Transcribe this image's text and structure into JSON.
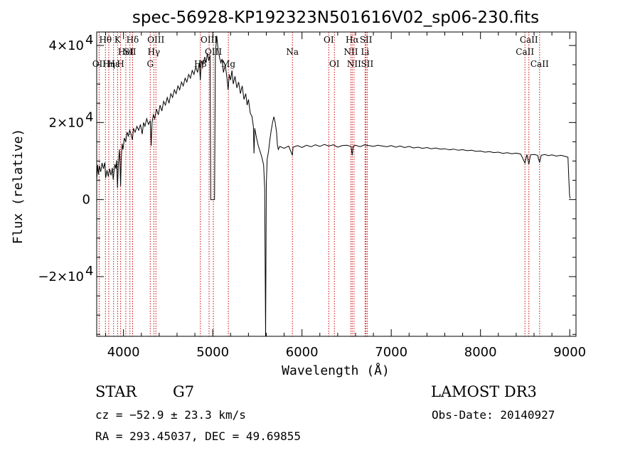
{
  "chart_data": {
    "type": "line",
    "title": "spec-56928-KP192323N501616V02_sp06-230.fits",
    "xlabel": "Wavelength (Å)",
    "ylabel": "Flux (relative)",
    "xlim": [
      3700,
      9070
    ],
    "ylim": [
      -35500,
      43500
    ],
    "x_ticks": [
      {
        "value": 4000,
        "label": "4000"
      },
      {
        "value": 5000,
        "label": "5000"
      },
      {
        "value": 6000,
        "label": "6000"
      },
      {
        "value": 7000,
        "label": "7000"
      },
      {
        "value": 8000,
        "label": "8000"
      },
      {
        "value": 9000,
        "label": "9000"
      }
    ],
    "y_ticks": [
      {
        "value": 40000,
        "mant": "4×10",
        "exp": "4"
      },
      {
        "value": 20000,
        "mant": "2×10",
        "exp": "4"
      },
      {
        "value": 0,
        "mant": "0",
        "exp": ""
      },
      {
        "value": -20000,
        "mant": "−2×10",
        "exp": "4"
      }
    ],
    "x_minor_step": 200,
    "y_minor_step": 5000,
    "series": [
      {
        "name": "flux",
        "points": [
          [
            3700,
            5000
          ],
          [
            3710,
            9000
          ],
          [
            3720,
            6500
          ],
          [
            3730,
            8800
          ],
          [
            3745,
            7200
          ],
          [
            3760,
            9500
          ],
          [
            3775,
            8000
          ],
          [
            3790,
            9600
          ],
          [
            3800,
            5600
          ],
          [
            3815,
            7600
          ],
          [
            3830,
            6000
          ],
          [
            3845,
            8000
          ],
          [
            3860,
            6300
          ],
          [
            3875,
            8200
          ],
          [
            3885,
            5200
          ],
          [
            3895,
            7600
          ],
          [
            3905,
            9200
          ],
          [
            3915,
            8000
          ],
          [
            3925,
            10200
          ],
          [
            3933,
            3000
          ],
          [
            3942,
            9000
          ],
          [
            3955,
            13000
          ],
          [
            3962,
            8500
          ],
          [
            3968,
            3500
          ],
          [
            3975,
            10500
          ],
          [
            3985,
            14500
          ],
          [
            3995,
            13000
          ],
          [
            4010,
            16000
          ],
          [
            4025,
            15000
          ],
          [
            4040,
            17500
          ],
          [
            4055,
            16500
          ],
          [
            4070,
            18000
          ],
          [
            4085,
            17000
          ],
          [
            4100,
            15500
          ],
          [
            4112,
            18500
          ],
          [
            4130,
            17500
          ],
          [
            4150,
            19000
          ],
          [
            4170,
            18000
          ],
          [
            4190,
            19500
          ],
          [
            4210,
            17000
          ],
          [
            4225,
            20000
          ],
          [
            4240,
            19000
          ],
          [
            4260,
            21000
          ],
          [
            4280,
            19500
          ],
          [
            4300,
            20500
          ],
          [
            4310,
            14000
          ],
          [
            4320,
            20000
          ],
          [
            4335,
            22000
          ],
          [
            4350,
            21000
          ],
          [
            4370,
            23500
          ],
          [
            4390,
            22000
          ],
          [
            4410,
            24500
          ],
          [
            4430,
            23000
          ],
          [
            4450,
            25500
          ],
          [
            4470,
            24500
          ],
          [
            4490,
            26500
          ],
          [
            4510,
            25000
          ],
          [
            4530,
            27500
          ],
          [
            4550,
            26500
          ],
          [
            4570,
            28500
          ],
          [
            4590,
            27500
          ],
          [
            4610,
            29500
          ],
          [
            4630,
            28500
          ],
          [
            4650,
            30500
          ],
          [
            4670,
            29500
          ],
          [
            4690,
            31500
          ],
          [
            4710,
            30500
          ],
          [
            4730,
            32500
          ],
          [
            4750,
            31500
          ],
          [
            4770,
            33500
          ],
          [
            4790,
            32500
          ],
          [
            4810,
            34500
          ],
          [
            4830,
            33000
          ],
          [
            4850,
            35500
          ],
          [
            4861,
            31000
          ],
          [
            4872,
            36000
          ],
          [
            4890,
            35000
          ],
          [
            4910,
            37000
          ],
          [
            4925,
            35500
          ],
          [
            4940,
            38000
          ],
          [
            4955,
            36000
          ],
          [
            4970,
            37500
          ],
          [
            4978,
            0
          ],
          [
            5020,
            0
          ],
          [
            5030,
            38000
          ],
          [
            5045,
            42500
          ],
          [
            5060,
            39000
          ],
          [
            5075,
            37000
          ],
          [
            5090,
            35500
          ],
          [
            5105,
            36500
          ],
          [
            5120,
            33000
          ],
          [
            5140,
            35000
          ],
          [
            5160,
            31500
          ],
          [
            5172,
            28500
          ],
          [
            5185,
            32500
          ],
          [
            5200,
            31000
          ],
          [
            5215,
            33500
          ],
          [
            5230,
            30000
          ],
          [
            5250,
            32000
          ],
          [
            5270,
            29000
          ],
          [
            5290,
            30500
          ],
          [
            5310,
            27500
          ],
          [
            5330,
            29500
          ],
          [
            5350,
            26000
          ],
          [
            5370,
            27500
          ],
          [
            5385,
            24500
          ],
          [
            5400,
            26000
          ],
          [
            5420,
            22500
          ],
          [
            5440,
            21500
          ],
          [
            5455,
            19000
          ],
          [
            5462,
            12000
          ],
          [
            5470,
            18500
          ],
          [
            5490,
            16000
          ],
          [
            5510,
            14000
          ],
          [
            5530,
            12500
          ],
          [
            5550,
            11000
          ],
          [
            5570,
            9000
          ],
          [
            5582,
            3000
          ],
          [
            5592,
            -35500
          ],
          [
            5600,
            4000
          ],
          [
            5610,
            10500
          ],
          [
            5625,
            12500
          ],
          [
            5640,
            15500
          ],
          [
            5655,
            18000
          ],
          [
            5670,
            20000
          ],
          [
            5685,
            21500
          ],
          [
            5700,
            20000
          ],
          [
            5715,
            17500
          ],
          [
            5725,
            14000
          ],
          [
            5735,
            13000
          ],
          [
            5750,
            13800
          ],
          [
            5800,
            13300
          ],
          [
            5850,
            13900
          ],
          [
            5893,
            11500
          ],
          [
            5900,
            13600
          ],
          [
            5950,
            14000
          ],
          [
            6000,
            13500
          ],
          [
            6050,
            14100
          ],
          [
            6100,
            13700
          ],
          [
            6150,
            14200
          ],
          [
            6200,
            13800
          ],
          [
            6250,
            14300
          ],
          [
            6300,
            13900
          ],
          [
            6350,
            14200
          ],
          [
            6400,
            13600
          ],
          [
            6450,
            14000
          ],
          [
            6500,
            14100
          ],
          [
            6550,
            13800
          ],
          [
            6563,
            11500
          ],
          [
            6575,
            13900
          ],
          [
            6600,
            14100
          ],
          [
            6650,
            13700
          ],
          [
            6700,
            14200
          ],
          [
            6750,
            14000
          ],
          [
            6800,
            13800
          ],
          [
            6850,
            14100
          ],
          [
            6900,
            13900
          ],
          [
            6950,
            13700
          ],
          [
            7000,
            14000
          ],
          [
            7050,
            13600
          ],
          [
            7100,
            13900
          ],
          [
            7150,
            13500
          ],
          [
            7200,
            13800
          ],
          [
            7250,
            13400
          ],
          [
            7300,
            13600
          ],
          [
            7350,
            13300
          ],
          [
            7400,
            13500
          ],
          [
            7450,
            13200
          ],
          [
            7500,
            13400
          ],
          [
            7550,
            13100
          ],
          [
            7600,
            13200
          ],
          [
            7650,
            12900
          ],
          [
            7700,
            13100
          ],
          [
            7750,
            12800
          ],
          [
            7800,
            12950
          ],
          [
            7850,
            12700
          ],
          [
            7900,
            12800
          ],
          [
            7950,
            12500
          ],
          [
            8000,
            12600
          ],
          [
            8050,
            12300
          ],
          [
            8100,
            12450
          ],
          [
            8150,
            12200
          ],
          [
            8200,
            12300
          ],
          [
            8250,
            12000
          ],
          [
            8300,
            12150
          ],
          [
            8350,
            11900
          ],
          [
            8400,
            12050
          ],
          [
            8450,
            11800
          ],
          [
            8498,
            9500
          ],
          [
            8520,
            11700
          ],
          [
            8542,
            9200
          ],
          [
            8560,
            11600
          ],
          [
            8600,
            11700
          ],
          [
            8640,
            11500
          ],
          [
            8662,
            9600
          ],
          [
            8680,
            11500
          ],
          [
            8720,
            11700
          ],
          [
            8760,
            11400
          ],
          [
            8800,
            11600
          ],
          [
            8850,
            11300
          ],
          [
            8900,
            11500
          ],
          [
            8950,
            11200
          ],
          [
            8980,
            11000
          ],
          [
            8990,
            5000
          ],
          [
            8998,
            1000
          ],
          [
            9005,
            300
          ]
        ]
      }
    ],
    "spectral_lines": [
      {
        "wavelength": 3727,
        "label": "OII",
        "row": 2
      },
      {
        "wavelength": 3798,
        "label": "",
        "row": 0
      },
      {
        "wavelength": 3835,
        "label": "",
        "row": 0
      },
      {
        "wavelength": 3889,
        "label": "Hε",
        "row": 2
      },
      {
        "wavelength": 3934,
        "label": "K",
        "row": 0
      },
      {
        "wavelength": 3968,
        "label": "H",
        "row": 2
      },
      {
        "wavelength": 4026,
        "label": "HeI",
        "row": 1
      },
      {
        "wavelength": 4072,
        "label": "SII",
        "row": 1
      },
      {
        "wavelength": 4102,
        "label": "Hδ",
        "row": 0
      },
      {
        "wavelength": 4300,
        "label": "G",
        "row": 2
      },
      {
        "wavelength": 4340,
        "label": "Hγ",
        "row": 1
      },
      {
        "wavelength": 4363,
        "label": "OIII",
        "row": 0
      },
      {
        "wavelength": 4861,
        "label": "Hβ",
        "row": 2
      },
      {
        "wavelength": 4959,
        "label": "OIII",
        "row": 0
      },
      {
        "wavelength": 5007,
        "label": "OIII",
        "row": 1
      },
      {
        "wavelength": 5175,
        "label": "Mg",
        "row": 2
      },
      {
        "wavelength": 5893,
        "label": "Na",
        "row": 1
      },
      {
        "wavelength": 6300,
        "label": "OI",
        "row": 0
      },
      {
        "wavelength": 6363,
        "label": "OI",
        "row": 2
      },
      {
        "wavelength": 6548,
        "label": "NII",
        "row": 1
      },
      {
        "wavelength": 6563,
        "label": "Hα",
        "row": 0
      },
      {
        "wavelength": 6583,
        "label": "NII",
        "row": 2
      },
      {
        "wavelength": 6707,
        "label": "Li",
        "row": 1
      },
      {
        "wavelength": 6717,
        "label": "SII",
        "row": 0
      },
      {
        "wavelength": 6731,
        "label": "SII",
        "row": 2
      },
      {
        "wavelength": 8498,
        "label": "CaII",
        "row": 1
      },
      {
        "wavelength": 8542,
        "label": "CaII",
        "row": 0
      },
      {
        "wavelength": 8662,
        "label": "CaII",
        "row": 2
      }
    ],
    "legend": "none",
    "grid": false
  },
  "spectral_line_labels_extra": [
    {
      "label": "Hθ",
      "wavelength": 3798,
      "row": 0
    },
    {
      "label": "Hη",
      "wavelength": 3835,
      "row": 2
    }
  ],
  "footer": {
    "object_class": "STAR",
    "subclass": "G7",
    "cz": "cz = −52.9 ± 23.3 km/s",
    "coords": "RA = 293.45037, DEC =  49.69855",
    "survey": "LAMOST DR3",
    "obs_date": "Obs-Date: 20140927"
  },
  "colors": {
    "line": "#000000",
    "marker_lines": "#cc0000",
    "background": "#ffffff"
  }
}
